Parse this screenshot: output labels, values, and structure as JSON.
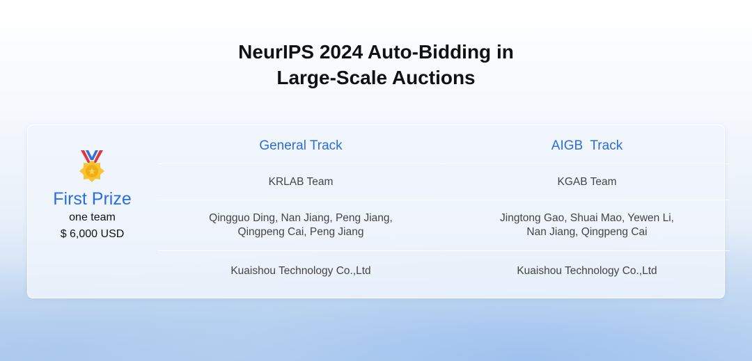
{
  "title_line1": "NeurIPS 2024 Auto-Bidding in",
  "title_line2": "Large-Scale Auctions",
  "prize": {
    "icon": "medal-icon",
    "label": "First Prize",
    "count": "one team",
    "amount": "$ 6,000 USD"
  },
  "tracks": [
    {
      "name": "General Track",
      "team": "KRLAB Team",
      "members_line1": "Qingguo Ding, Nan Jiang, Peng Jiang,",
      "members_line2": "Qingpeng Cai, Peng Jiang",
      "org": "Kuaishou Technology Co.,Ltd"
    },
    {
      "name": "AIGB  Track",
      "team": "KGAB Team",
      "members_line1": "Jingtong Gao, Shuai Mao, Yewen Li,",
      "members_line2": "Nan Jiang, Qingpeng Cai",
      "org": "Kuaishou Technology Co.,Ltd"
    }
  ],
  "colors": {
    "accent": "#2a6de0"
  }
}
